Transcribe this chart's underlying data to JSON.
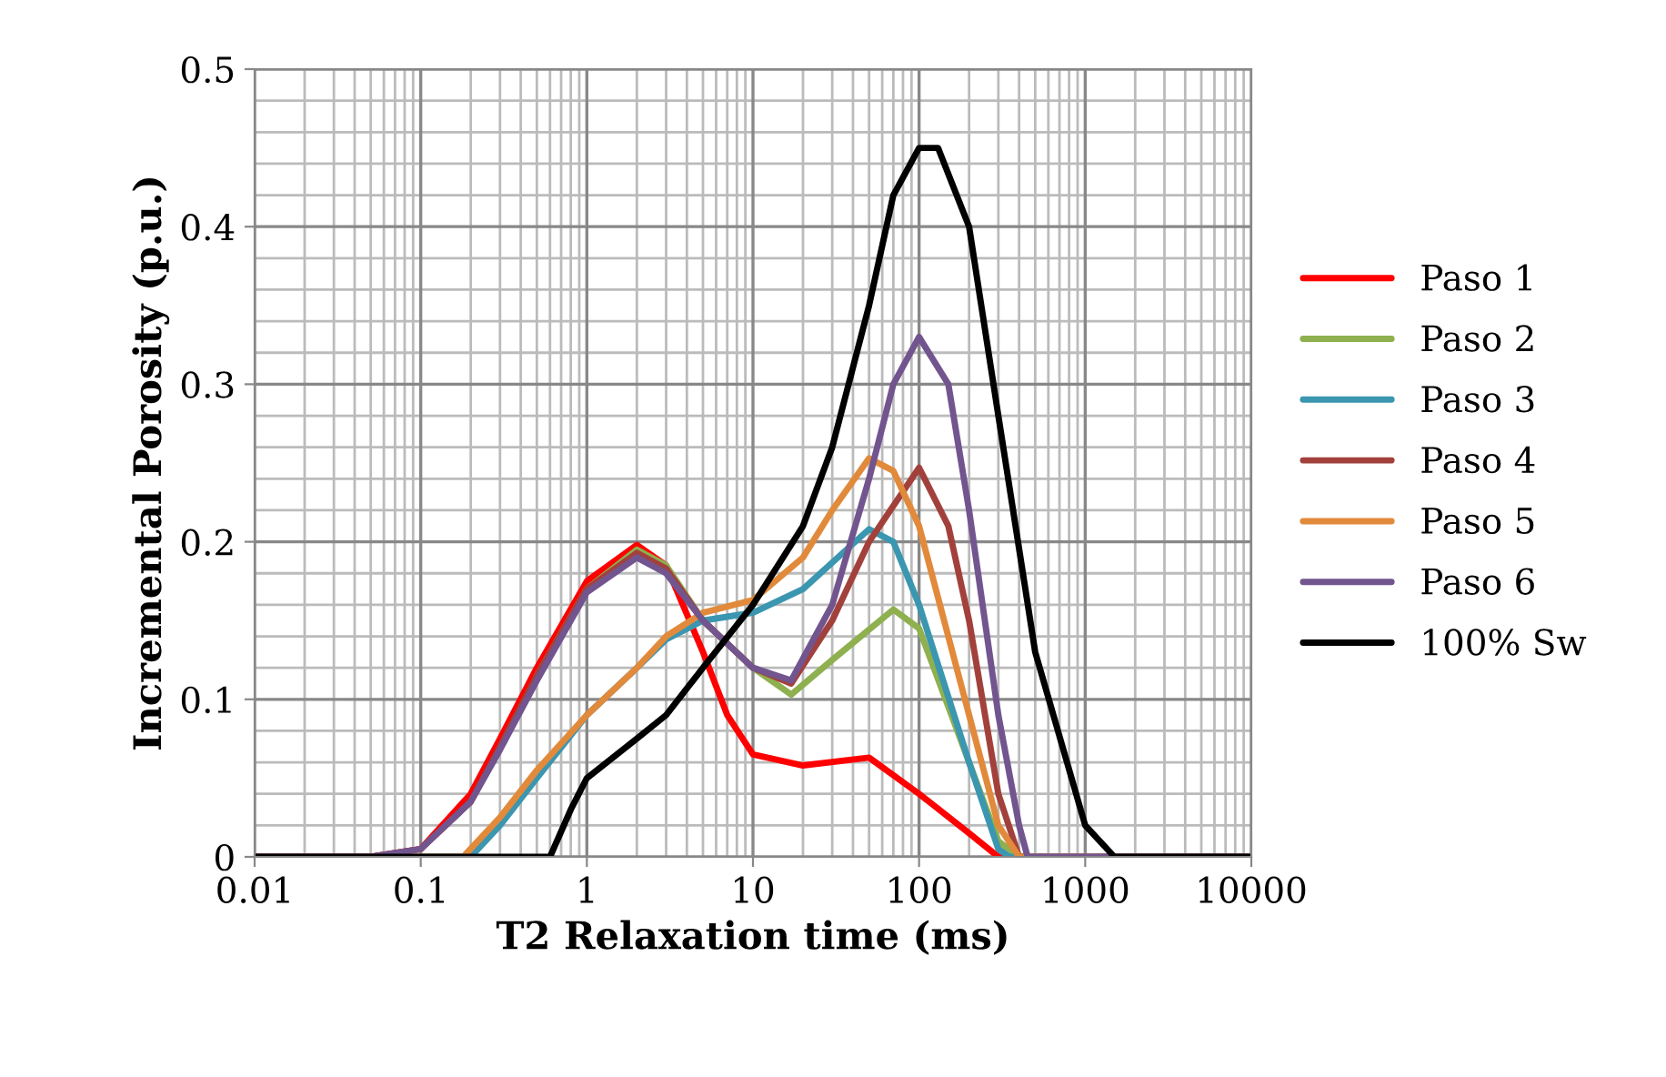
{
  "chart_data": {
    "type": "line",
    "xlabel": "T2 Relaxation time (ms)",
    "ylabel": "Incremental Porosity (p.u.)",
    "log": "x",
    "grid": true,
    "legend": "right",
    "marker": "none",
    "line_style": "solid",
    "xlim": [
      0.01,
      10000
    ],
    "xticks": [
      0.01,
      0.1,
      1,
      10,
      100,
      1000,
      10000
    ],
    "ylim": [
      0,
      0.5
    ],
    "yticks": [
      0,
      0.1,
      0.2,
      0.3,
      0.4,
      0.5
    ],
    "series": [
      {
        "name": "Paso 1",
        "color": "#ff0000",
        "x": [
          0.01,
          0.05,
          0.1,
          0.2,
          0.3,
          0.5,
          1,
          2,
          3,
          5,
          7,
          10,
          20,
          50,
          100,
          200,
          300,
          10000
        ],
        "values": [
          0,
          0,
          0.005,
          0.04,
          0.075,
          0.12,
          0.175,
          0.198,
          0.185,
          0.13,
          0.09,
          0.065,
          0.058,
          0.063,
          0.04,
          0.015,
          0,
          0
        ]
      },
      {
        "name": "Paso 2",
        "color": "#8eb04f",
        "x": [
          0.5,
          1,
          2,
          3,
          5,
          10,
          17,
          30,
          70,
          100,
          200,
          300,
          400,
          10000
        ],
        "values": [
          0.115,
          0.17,
          0.195,
          0.185,
          0.15,
          0.12,
          0.103,
          0.125,
          0.157,
          0.145,
          0.06,
          0.01,
          0,
          0
        ]
      },
      {
        "name": "Paso 3",
        "color": "#3b96b0",
        "x": [
          0.01,
          0.2,
          0.3,
          0.5,
          1,
          2,
          3,
          5,
          10,
          20,
          50,
          70,
          100,
          200,
          300,
          350,
          10000
        ],
        "values": [
          0,
          0,
          0.02,
          0.05,
          0.09,
          0.12,
          0.138,
          0.15,
          0.155,
          0.17,
          0.208,
          0.2,
          0.16,
          0.06,
          0.005,
          0,
          0
        ]
      },
      {
        "name": "Paso 4",
        "color": "#a2413c",
        "x": [
          0.01,
          0.05,
          0.1,
          0.2,
          0.3,
          0.5,
          1,
          2,
          3,
          5,
          10,
          17,
          30,
          50,
          100,
          150,
          200,
          300,
          400,
          10000
        ],
        "values": [
          0,
          0,
          0.005,
          0.035,
          0.07,
          0.115,
          0.17,
          0.193,
          0.183,
          0.15,
          0.12,
          0.11,
          0.15,
          0.2,
          0.247,
          0.21,
          0.15,
          0.04,
          0,
          0
        ]
      },
      {
        "name": "Paso 5",
        "color": "#e28a3b",
        "x": [
          0.01,
          0.18,
          0.3,
          0.5,
          1,
          2,
          3,
          5,
          10,
          20,
          30,
          50,
          70,
          100,
          200,
          300,
          400,
          10000
        ],
        "values": [
          0,
          0,
          0.025,
          0.055,
          0.09,
          0.12,
          0.14,
          0.155,
          0.163,
          0.19,
          0.22,
          0.253,
          0.245,
          0.21,
          0.09,
          0.02,
          0,
          0
        ]
      },
      {
        "name": "Paso 6",
        "color": "#72558f",
        "x": [
          0.01,
          0.05,
          0.1,
          0.2,
          0.3,
          0.5,
          1,
          2,
          3,
          5,
          10,
          17,
          30,
          50,
          70,
          100,
          150,
          200,
          300,
          400,
          450,
          10000
        ],
        "values": [
          0,
          0,
          0.005,
          0.035,
          0.068,
          0.112,
          0.168,
          0.19,
          0.18,
          0.15,
          0.12,
          0.112,
          0.16,
          0.24,
          0.3,
          0.33,
          0.3,
          0.22,
          0.09,
          0.02,
          0,
          0
        ]
      },
      {
        "name": "100% Sw",
        "color": "#000000",
        "x": [
          0.01,
          0.6,
          0.8,
          1,
          2,
          3,
          5,
          10,
          20,
          30,
          50,
          70,
          100,
          130,
          200,
          300,
          500,
          1000,
          1500,
          10000
        ],
        "values": [
          0,
          0,
          0.03,
          0.05,
          0.075,
          0.09,
          0.12,
          0.16,
          0.21,
          0.26,
          0.35,
          0.42,
          0.45,
          0.45,
          0.4,
          0.28,
          0.13,
          0.02,
          0,
          0
        ]
      }
    ]
  }
}
